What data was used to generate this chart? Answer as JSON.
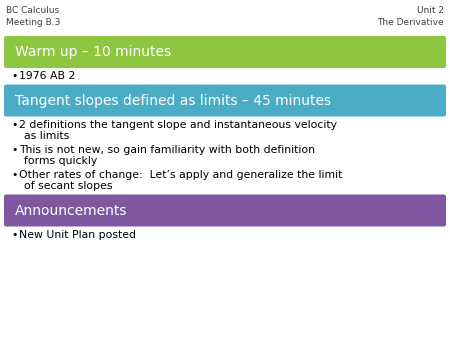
{
  "background_color": "#ffffff",
  "top_left_line1": "BC Calculus",
  "top_left_line2": "Meeting B.3",
  "top_right_line1": "Unit 2",
  "top_right_line2": "The Derivative",
  "header_font_size": 6.5,
  "section1_title": "Warm up – 10 minutes",
  "section1_color": "#8DC63F",
  "section1_bullets": [
    "1976 AB 2"
  ],
  "section2_title": "Tangent slopes defined as limits – 45 minutes",
  "section2_color": "#4BACC6",
  "section2_bullets": [
    "2 definitions the tangent slope and instantaneous velocity\nas limits",
    "This is not new, so gain familiarity with both definition\nforms quickly",
    "Other rates of change:  Let’s apply and generalize the limit\nof secant slopes"
  ],
  "section3_title": "Announcements",
  "section3_color": "#7E57A0",
  "section3_bullets": [
    "New Unit Plan posted"
  ],
  "title_text_color": "#ffffff",
  "bullet_text_color": "#000000",
  "title_font_size": 10,
  "bullet_font_size": 7.8,
  "corner_text_color": "#404040"
}
